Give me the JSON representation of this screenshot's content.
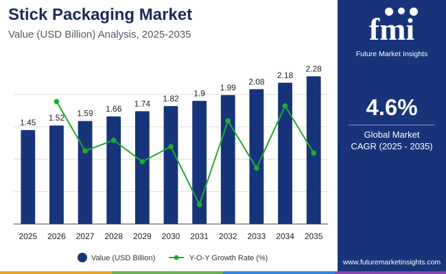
{
  "header": {
    "title": "Stick Packaging Market",
    "subtitle": "Value (USD Billion) Analysis, 2025-2035"
  },
  "side_panel": {
    "logo_text": "fmi",
    "logo_caption": "Future Market Insights",
    "cagr_value": "4.6%",
    "cagr_label_line1": "Global Market",
    "cagr_label_line2": "CAGR (2025 - 2035)",
    "website": "www.futuremarketinsights.com"
  },
  "colors": {
    "bar": "#17347a",
    "line": "#22aa2e",
    "side_panel": "#17347a",
    "title": "#1b2a5c",
    "bottom_stripe": [
      "#e8a522",
      "#6ab04c",
      "#2e86de",
      "#8e44ad"
    ]
  },
  "chart_data": {
    "type": "bar",
    "title": "Stick Packaging Market",
    "subtitle": "Value (USD Billion) Analysis, 2025-2035",
    "categories": [
      "2025",
      "2026",
      "2027",
      "2028",
      "2029",
      "2030",
      "2031",
      "2032",
      "2033",
      "2034",
      "2035"
    ],
    "series": [
      {
        "name": "Value (USD Billion)",
        "type": "bar",
        "values": [
          1.45,
          1.52,
          1.59,
          1.66,
          1.74,
          1.82,
          1.9,
          1.99,
          2.08,
          2.18,
          2.28
        ],
        "labels": [
          "1.45",
          "1.52",
          "1.59",
          "1.66",
          "1.74",
          "1.82",
          "1.9",
          "1.99",
          "2.08",
          "2.18",
          "2.28"
        ]
      },
      {
        "name": "Y-O-Y Growth Rate (%)",
        "type": "line",
        "x": [
          "2026",
          "2027",
          "2028",
          "2029",
          "2030",
          "2031",
          "2032",
          "2033",
          "2034",
          "2035"
        ],
        "values": [
          4.83,
          4.6,
          4.65,
          4.55,
          4.62,
          4.35,
          4.74,
          4.52,
          4.81,
          4.59
        ]
      }
    ],
    "ylim": [
      0,
      2.4
    ],
    "growth_ylim": [
      4.25,
      5.0
    ],
    "grid": true,
    "legend": "bottom"
  }
}
